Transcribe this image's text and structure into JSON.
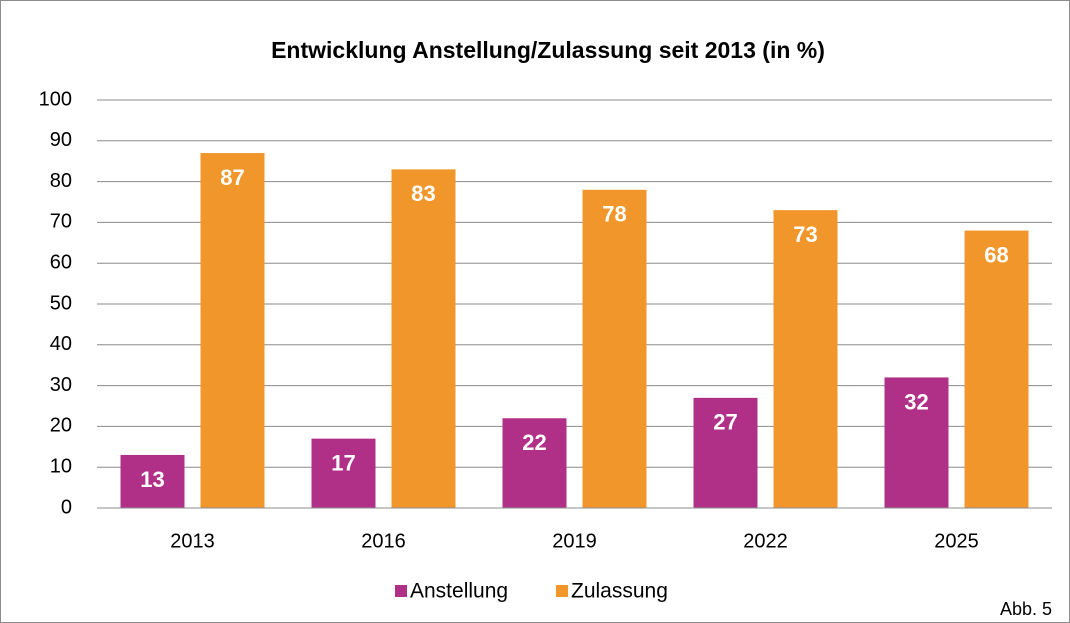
{
  "chart_data": {
    "type": "bar",
    "title": "Entwicklung Anstellung/Zulassung seit 2013 (in %)",
    "categories": [
      "2013",
      "2016",
      "2019",
      "2022",
      "2025"
    ],
    "series": [
      {
        "name": "Anstellung",
        "color": "#b03088",
        "values": [
          13,
          17,
          22,
          27,
          32
        ]
      },
      {
        "name": "Zulassung",
        "color": "#f0962a",
        "values": [
          87,
          83,
          78,
          73,
          68
        ]
      }
    ],
    "ylim": [
      0,
      100
    ],
    "yticks": [
      0,
      10,
      20,
      30,
      40,
      50,
      60,
      70,
      80,
      90,
      100
    ],
    "grid": true,
    "legend": "bottom",
    "note": "Abb. 5"
  }
}
